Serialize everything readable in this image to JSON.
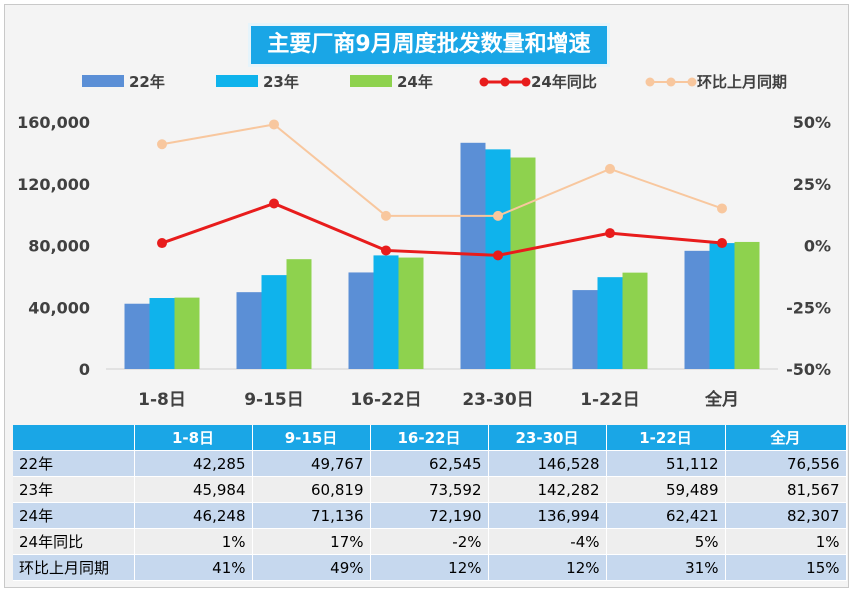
{
  "chart_data": {
    "type": "bar",
    "title": "主要厂商9月周度批发数量和增速",
    "categories": [
      "1-8日",
      "9-15日",
      "16-22日",
      "23-30日",
      "1-22日",
      "全月"
    ],
    "series": [
      {
        "name": "22年",
        "kind": "bar",
        "axis": "left",
        "color": "#5b8fd6",
        "values": [
          42285,
          49767,
          62545,
          146528,
          51112,
          76556
        ]
      },
      {
        "name": "23年",
        "kind": "bar",
        "axis": "left",
        "color": "#0fb3ec",
        "values": [
          45984,
          60819,
          73592,
          142282,
          59489,
          81567
        ]
      },
      {
        "name": "24年",
        "kind": "bar",
        "axis": "left",
        "color": "#8ed24e",
        "values": [
          46248,
          71136,
          72190,
          136994,
          62421,
          82307
        ]
      },
      {
        "name": "24年同比",
        "kind": "line",
        "axis": "right",
        "color": "#e81c1c",
        "values": [
          1,
          17,
          -2,
          -4,
          5,
          1
        ]
      },
      {
        "name": "环比上月同期",
        "kind": "line",
        "axis": "right",
        "color": "#f8c79e",
        "values": [
          41,
          49,
          12,
          12,
          31,
          15
        ]
      }
    ],
    "ylim_left": [
      0,
      160000
    ],
    "yticks_left": [
      "0",
      "40,000",
      "80,000",
      "120,000",
      "160,000"
    ],
    "ylim_right": [
      -50,
      50
    ],
    "yticks_right": [
      "-50%",
      "-25%",
      "0%",
      "25%",
      "50%"
    ],
    "legend_position": "top"
  },
  "table": {
    "header": [
      "",
      "1-8日",
      "9-15日",
      "16-22日",
      "23-30日",
      "1-22日",
      "全月"
    ],
    "rows": [
      {
        "label": "22年",
        "cells": [
          "42,285",
          "49,767",
          "62,545",
          "146,528",
          "51,112",
          "76,556"
        ]
      },
      {
        "label": "23年",
        "cells": [
          "45,984",
          "60,819",
          "73,592",
          "142,282",
          "59,489",
          "81,567"
        ]
      },
      {
        "label": "24年",
        "cells": [
          "46,248",
          "71,136",
          "72,190",
          "136,994",
          "62,421",
          "82,307"
        ]
      },
      {
        "label": "24年同比",
        "cells": [
          "1%",
          "17%",
          "-2%",
          "-4%",
          "5%",
          "1%"
        ]
      },
      {
        "label": "环比上月同期",
        "cells": [
          "41%",
          "49%",
          "12%",
          "12%",
          "31%",
          "15%"
        ]
      }
    ]
  }
}
